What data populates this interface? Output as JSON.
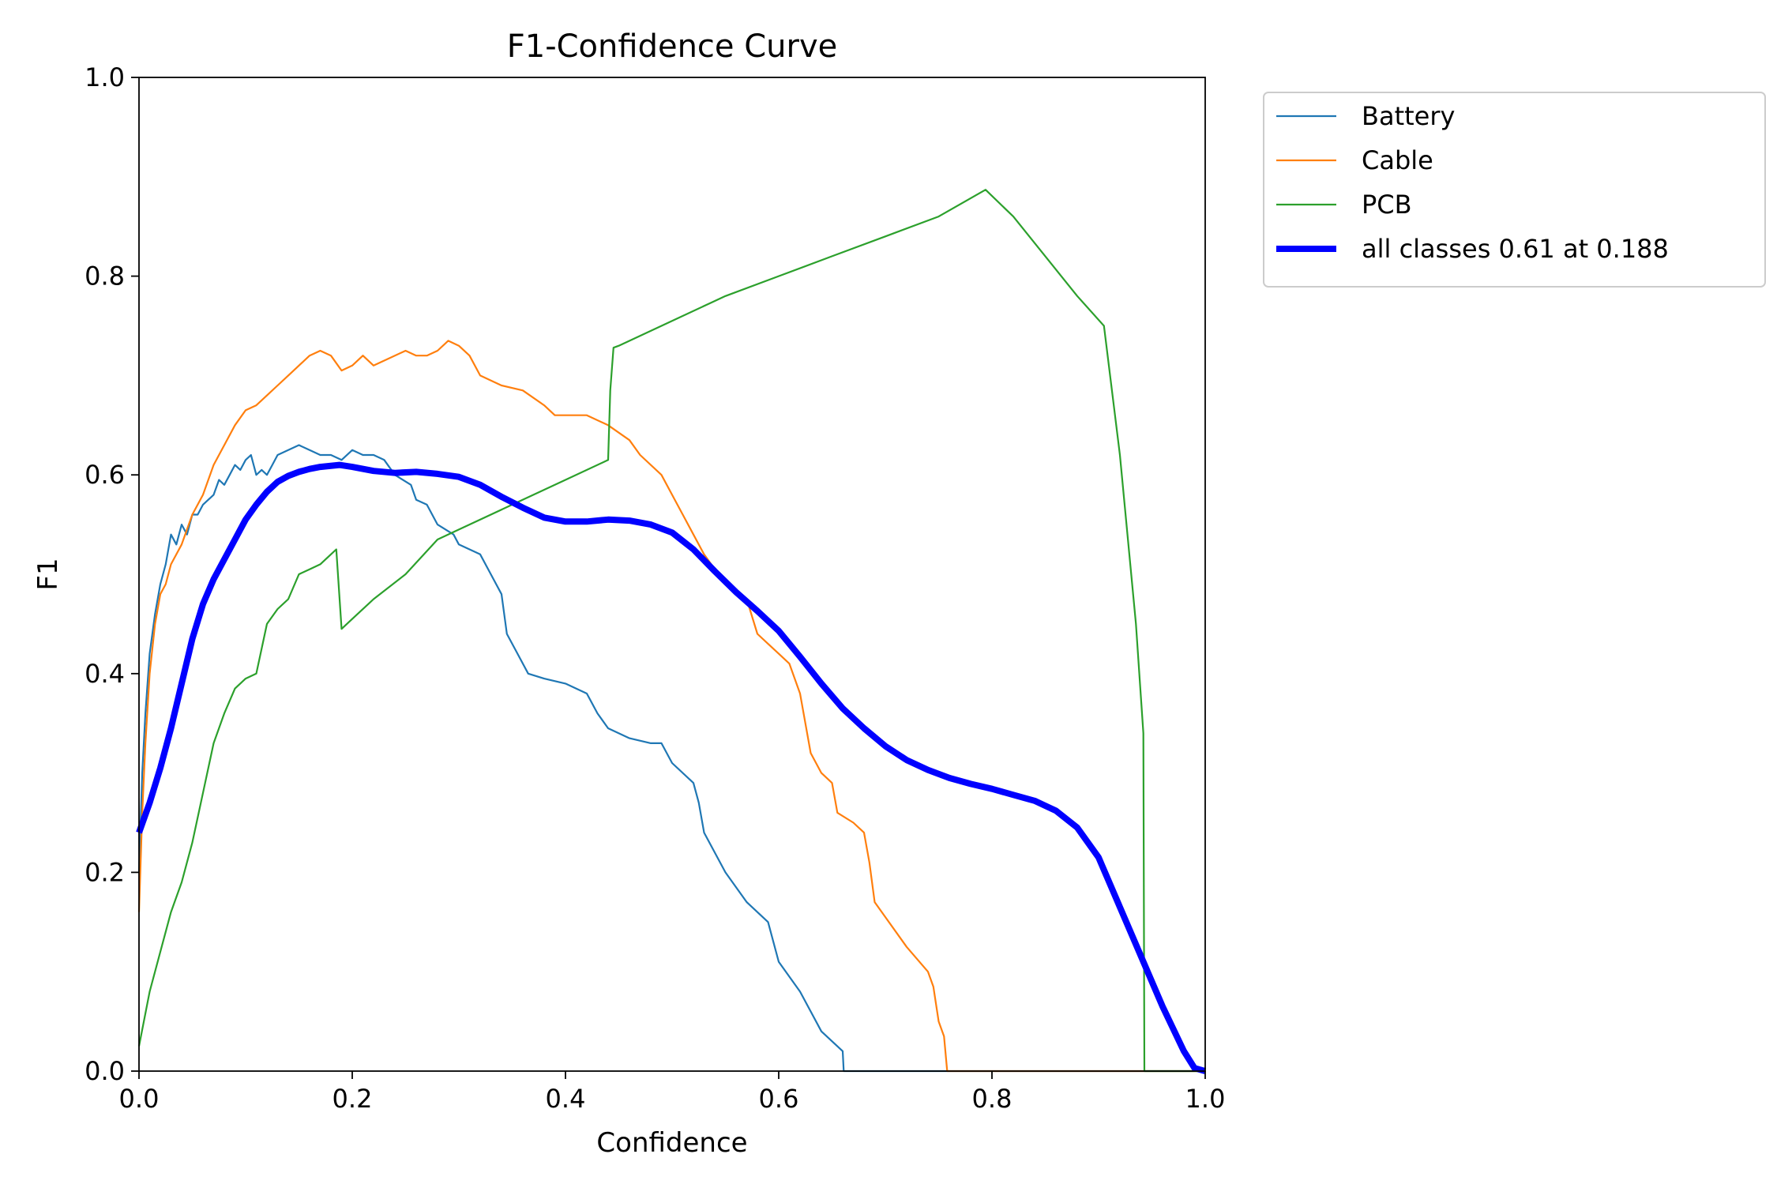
{
  "chart_data": {
    "type": "line",
    "title": "F1-Confidence Curve",
    "xlabel": "Confidence",
    "ylabel": "F1",
    "xlim": [
      0,
      1
    ],
    "ylim": [
      0,
      1
    ],
    "xticks": [
      "0.0",
      "0.2",
      "0.4",
      "0.6",
      "0.8",
      "1.0"
    ],
    "yticks": [
      "0.0",
      "0.2",
      "0.4",
      "0.6",
      "0.8",
      "1.0"
    ],
    "grid": false,
    "legend_position": "outside upper right",
    "series": [
      {
        "name": "Battery",
        "color": "#1f77b4",
        "points": [
          [
            0.0,
            0.2
          ],
          [
            0.003,
            0.3
          ],
          [
            0.006,
            0.36
          ],
          [
            0.01,
            0.42
          ],
          [
            0.015,
            0.46
          ],
          [
            0.02,
            0.49
          ],
          [
            0.025,
            0.51
          ],
          [
            0.03,
            0.54
          ],
          [
            0.035,
            0.53
          ],
          [
            0.04,
            0.55
          ],
          [
            0.045,
            0.54
          ],
          [
            0.05,
            0.56
          ],
          [
            0.055,
            0.56
          ],
          [
            0.06,
            0.57
          ],
          [
            0.07,
            0.58
          ],
          [
            0.075,
            0.595
          ],
          [
            0.08,
            0.59
          ],
          [
            0.085,
            0.6
          ],
          [
            0.09,
            0.61
          ],
          [
            0.095,
            0.605
          ],
          [
            0.1,
            0.615
          ],
          [
            0.105,
            0.62
          ],
          [
            0.11,
            0.6
          ],
          [
            0.115,
            0.605
          ],
          [
            0.12,
            0.6
          ],
          [
            0.125,
            0.61
          ],
          [
            0.13,
            0.62
          ],
          [
            0.14,
            0.625
          ],
          [
            0.15,
            0.63
          ],
          [
            0.16,
            0.625
          ],
          [
            0.17,
            0.62
          ],
          [
            0.18,
            0.62
          ],
          [
            0.19,
            0.615
          ],
          [
            0.2,
            0.625
          ],
          [
            0.21,
            0.62
          ],
          [
            0.22,
            0.62
          ],
          [
            0.23,
            0.615
          ],
          [
            0.24,
            0.6
          ],
          [
            0.255,
            0.59
          ],
          [
            0.26,
            0.575
          ],
          [
            0.27,
            0.57
          ],
          [
            0.28,
            0.55
          ],
          [
            0.295,
            0.54
          ],
          [
            0.3,
            0.53
          ],
          [
            0.32,
            0.52
          ],
          [
            0.33,
            0.5
          ],
          [
            0.34,
            0.48
          ],
          [
            0.345,
            0.44
          ],
          [
            0.355,
            0.42
          ],
          [
            0.365,
            0.4
          ],
          [
            0.38,
            0.395
          ],
          [
            0.4,
            0.39
          ],
          [
            0.42,
            0.38
          ],
          [
            0.43,
            0.36
          ],
          [
            0.44,
            0.345
          ],
          [
            0.46,
            0.335
          ],
          [
            0.48,
            0.33
          ],
          [
            0.49,
            0.33
          ],
          [
            0.5,
            0.31
          ],
          [
            0.52,
            0.29
          ],
          [
            0.525,
            0.27
          ],
          [
            0.53,
            0.24
          ],
          [
            0.55,
            0.2
          ],
          [
            0.57,
            0.17
          ],
          [
            0.59,
            0.15
          ],
          [
            0.6,
            0.11
          ],
          [
            0.62,
            0.08
          ],
          [
            0.63,
            0.06
          ],
          [
            0.64,
            0.04
          ],
          [
            0.66,
            0.02
          ],
          [
            0.661,
            0.0
          ],
          [
            1.0,
            0.0
          ]
        ]
      },
      {
        "name": "Cable",
        "color": "#ff7f0e",
        "points": [
          [
            0.0,
            0.16
          ],
          [
            0.003,
            0.26
          ],
          [
            0.006,
            0.33
          ],
          [
            0.01,
            0.4
          ],
          [
            0.015,
            0.45
          ],
          [
            0.02,
            0.48
          ],
          [
            0.025,
            0.49
          ],
          [
            0.03,
            0.51
          ],
          [
            0.04,
            0.53
          ],
          [
            0.05,
            0.56
          ],
          [
            0.06,
            0.58
          ],
          [
            0.07,
            0.61
          ],
          [
            0.08,
            0.63
          ],
          [
            0.09,
            0.65
          ],
          [
            0.1,
            0.665
          ],
          [
            0.11,
            0.67
          ],
          [
            0.12,
            0.68
          ],
          [
            0.13,
            0.69
          ],
          [
            0.14,
            0.7
          ],
          [
            0.15,
            0.71
          ],
          [
            0.16,
            0.72
          ],
          [
            0.17,
            0.725
          ],
          [
            0.18,
            0.72
          ],
          [
            0.19,
            0.705
          ],
          [
            0.2,
            0.71
          ],
          [
            0.21,
            0.72
          ],
          [
            0.22,
            0.71
          ],
          [
            0.23,
            0.715
          ],
          [
            0.25,
            0.725
          ],
          [
            0.26,
            0.72
          ],
          [
            0.27,
            0.72
          ],
          [
            0.28,
            0.725
          ],
          [
            0.29,
            0.735
          ],
          [
            0.3,
            0.73
          ],
          [
            0.31,
            0.72
          ],
          [
            0.32,
            0.7
          ],
          [
            0.34,
            0.69
          ],
          [
            0.36,
            0.685
          ],
          [
            0.38,
            0.67
          ],
          [
            0.39,
            0.66
          ],
          [
            0.4,
            0.66
          ],
          [
            0.42,
            0.66
          ],
          [
            0.44,
            0.65
          ],
          [
            0.46,
            0.635
          ],
          [
            0.47,
            0.62
          ],
          [
            0.49,
            0.6
          ],
          [
            0.5,
            0.58
          ],
          [
            0.51,
            0.56
          ],
          [
            0.52,
            0.54
          ],
          [
            0.53,
            0.52
          ],
          [
            0.54,
            0.505
          ],
          [
            0.55,
            0.49
          ],
          [
            0.56,
            0.48
          ],
          [
            0.57,
            0.475
          ],
          [
            0.58,
            0.44
          ],
          [
            0.59,
            0.43
          ],
          [
            0.6,
            0.42
          ],
          [
            0.61,
            0.41
          ],
          [
            0.62,
            0.38
          ],
          [
            0.63,
            0.32
          ],
          [
            0.64,
            0.3
          ],
          [
            0.65,
            0.29
          ],
          [
            0.655,
            0.26
          ],
          [
            0.67,
            0.25
          ],
          [
            0.68,
            0.24
          ],
          [
            0.685,
            0.21
          ],
          [
            0.69,
            0.17
          ],
          [
            0.7,
            0.155
          ],
          [
            0.72,
            0.125
          ],
          [
            0.74,
            0.1
          ],
          [
            0.745,
            0.085
          ],
          [
            0.75,
            0.05
          ],
          [
            0.755,
            0.035
          ],
          [
            0.758,
            0.0
          ],
          [
            1.0,
            0.0
          ]
        ]
      },
      {
        "name": "PCB",
        "color": "#2ca02c",
        "points": [
          [
            0.0,
            0.025
          ],
          [
            0.01,
            0.08
          ],
          [
            0.02,
            0.12
          ],
          [
            0.03,
            0.16
          ],
          [
            0.04,
            0.19
          ],
          [
            0.05,
            0.23
          ],
          [
            0.06,
            0.28
          ],
          [
            0.07,
            0.33
          ],
          [
            0.08,
            0.36
          ],
          [
            0.09,
            0.385
          ],
          [
            0.1,
            0.395
          ],
          [
            0.11,
            0.4
          ],
          [
            0.12,
            0.45
          ],
          [
            0.13,
            0.465
          ],
          [
            0.14,
            0.475
          ],
          [
            0.15,
            0.5
          ],
          [
            0.16,
            0.505
          ],
          [
            0.17,
            0.51
          ],
          [
            0.18,
            0.52
          ],
          [
            0.185,
            0.525
          ],
          [
            0.19,
            0.445
          ],
          [
            0.2,
            0.455
          ],
          [
            0.22,
            0.475
          ],
          [
            0.25,
            0.5
          ],
          [
            0.28,
            0.535
          ],
          [
            0.3,
            0.545
          ],
          [
            0.35,
            0.57
          ],
          [
            0.4,
            0.595
          ],
          [
            0.44,
            0.615
          ],
          [
            0.442,
            0.685
          ],
          [
            0.445,
            0.728
          ],
          [
            0.45,
            0.73
          ],
          [
            0.5,
            0.755
          ],
          [
            0.55,
            0.78
          ],
          [
            0.6,
            0.8
          ],
          [
            0.65,
            0.82
          ],
          [
            0.7,
            0.84
          ],
          [
            0.75,
            0.86
          ],
          [
            0.794,
            0.887
          ],
          [
            0.82,
            0.86
          ],
          [
            0.85,
            0.82
          ],
          [
            0.88,
            0.78
          ],
          [
            0.905,
            0.75
          ],
          [
            0.92,
            0.62
          ],
          [
            0.935,
            0.45
          ],
          [
            0.942,
            0.34
          ],
          [
            0.943,
            0.0
          ],
          [
            1.0,
            0.0
          ]
        ]
      },
      {
        "name": "all classes 0.61 at 0.188",
        "color": "#0000ff",
        "thick": true,
        "points": [
          [
            0.0,
            0.24
          ],
          [
            0.01,
            0.27
          ],
          [
            0.02,
            0.305
          ],
          [
            0.03,
            0.345
          ],
          [
            0.04,
            0.39
          ],
          [
            0.05,
            0.435
          ],
          [
            0.06,
            0.47
          ],
          [
            0.07,
            0.495
          ],
          [
            0.08,
            0.515
          ],
          [
            0.09,
            0.535
          ],
          [
            0.1,
            0.555
          ],
          [
            0.11,
            0.57
          ],
          [
            0.12,
            0.583
          ],
          [
            0.13,
            0.593
          ],
          [
            0.14,
            0.599
          ],
          [
            0.15,
            0.603
          ],
          [
            0.16,
            0.606
          ],
          [
            0.17,
            0.608
          ],
          [
            0.188,
            0.61
          ],
          [
            0.2,
            0.608
          ],
          [
            0.22,
            0.604
          ],
          [
            0.24,
            0.602
          ],
          [
            0.26,
            0.603
          ],
          [
            0.28,
            0.601
          ],
          [
            0.3,
            0.598
          ],
          [
            0.32,
            0.59
          ],
          [
            0.34,
            0.578
          ],
          [
            0.36,
            0.567
          ],
          [
            0.38,
            0.557
          ],
          [
            0.4,
            0.553
          ],
          [
            0.42,
            0.553
          ],
          [
            0.44,
            0.555
          ],
          [
            0.46,
            0.554
          ],
          [
            0.48,
            0.55
          ],
          [
            0.5,
            0.542
          ],
          [
            0.52,
            0.525
          ],
          [
            0.54,
            0.503
          ],
          [
            0.56,
            0.482
          ],
          [
            0.58,
            0.463
          ],
          [
            0.6,
            0.443
          ],
          [
            0.62,
            0.417
          ],
          [
            0.64,
            0.39
          ],
          [
            0.66,
            0.365
          ],
          [
            0.68,
            0.345
          ],
          [
            0.7,
            0.327
          ],
          [
            0.72,
            0.313
          ],
          [
            0.74,
            0.303
          ],
          [
            0.76,
            0.295
          ],
          [
            0.78,
            0.289
          ],
          [
            0.8,
            0.284
          ],
          [
            0.82,
            0.278
          ],
          [
            0.84,
            0.272
          ],
          [
            0.86,
            0.262
          ],
          [
            0.88,
            0.245
          ],
          [
            0.9,
            0.215
          ],
          [
            0.92,
            0.165
          ],
          [
            0.94,
            0.115
          ],
          [
            0.96,
            0.065
          ],
          [
            0.98,
            0.02
          ],
          [
            0.99,
            0.003
          ],
          [
            1.0,
            0.0
          ]
        ]
      }
    ]
  }
}
